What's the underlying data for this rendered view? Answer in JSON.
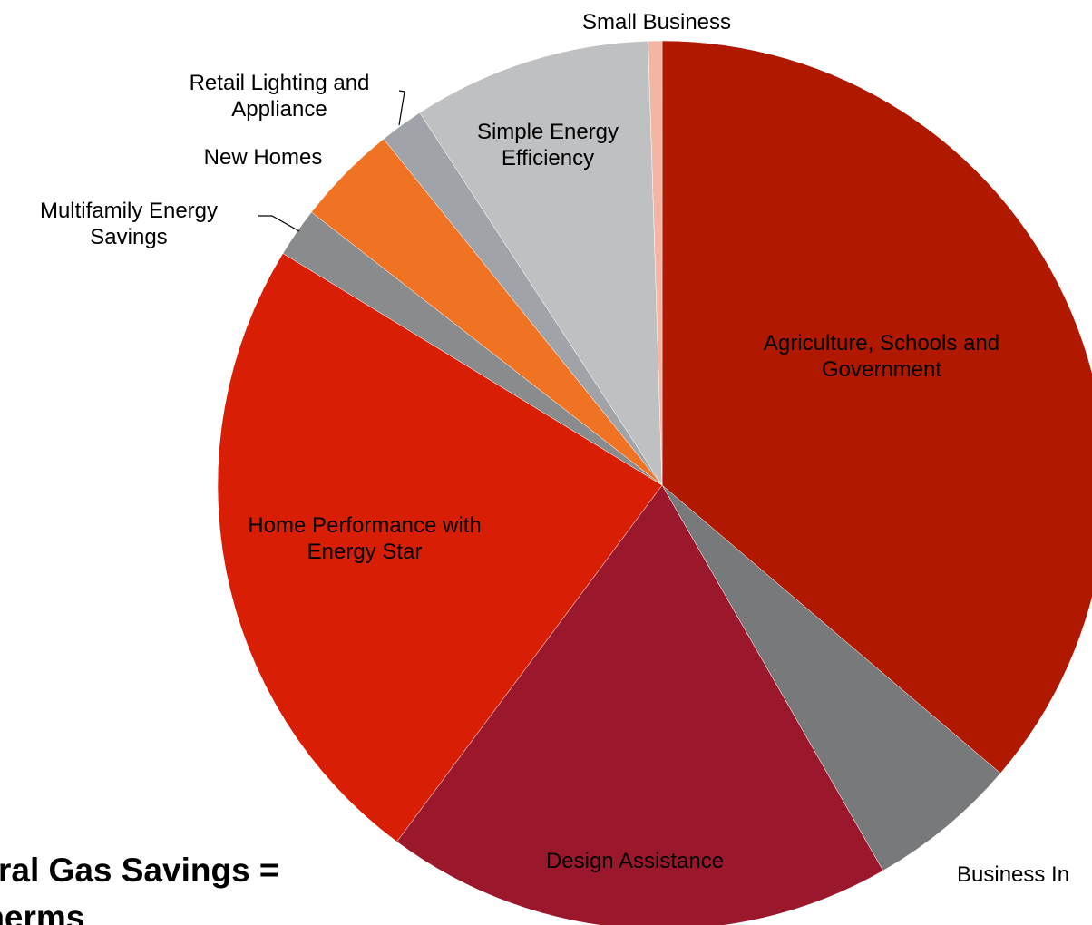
{
  "chart_data": {
    "type": "pie",
    "categories": [
      "Agriculture, Schools and Government",
      "Business In",
      "Design Assistance",
      "Home Performance with Energy Star",
      "Multifamily Energy Savings",
      "New Homes",
      "Retail Lighting and Appliance",
      "Simple Energy Efficiency",
      "Small Business"
    ],
    "values": [
      36.3,
      5.5,
      18.5,
      23.6,
      1.8,
      3.7,
      1.6,
      8.7,
      0.5
    ],
    "colors": [
      "#b01800",
      "#78797b",
      "#9b182c",
      "#d81e05",
      "#8a8b8d",
      "#f07323",
      "#a0a4a9",
      "#bfc0c2",
      "#f4b5a5"
    ],
    "annotations": [
      "ral Gas Savings =",
      "therms"
    ]
  }
}
